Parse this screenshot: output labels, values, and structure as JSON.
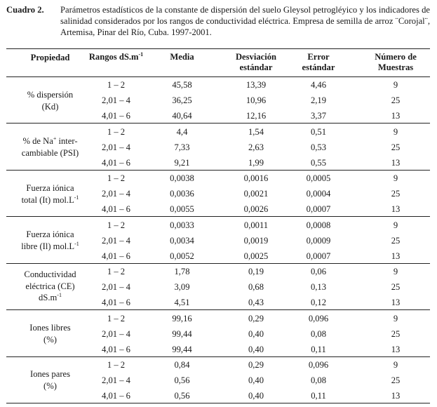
{
  "caption": {
    "label": "Cuadro 2.",
    "text": "Parámetros estadísticos de la constante de dispersión del suelo Gleysol petrogléyico y los indicadores de salinidad considerados por  los rangos de conductividad eléctrica. Empresa de semilla de arroz ¨Corojal¨, Artemisa, Pinar del Río, Cuba. 1997-2001."
  },
  "table": {
    "headers": {
      "propiedad": "Propiedad",
      "rangos": "Rangos dS.m",
      "rangos_sup": "-1",
      "media": "Media",
      "desviacion_1": "Desviación",
      "desviacion_2": "estándar",
      "error_1": "Error",
      "error_2": "estándar",
      "numero_1": "Número de",
      "numero_2": "Muestras"
    },
    "groups": [
      {
        "label_lines": [
          "% dispersión",
          "(Kd)"
        ],
        "rows": [
          {
            "rango": "1 – 2",
            "media": "45,58",
            "desviacion": "13,39",
            "error": "4,46",
            "n": "9"
          },
          {
            "rango": "2,01 – 4",
            "media": "36,25",
            "desviacion": "10,96",
            "error": "2,19",
            "n": "25"
          },
          {
            "rango": "4,01 – 6",
            "media": "40,64",
            "desviacion": "12,16",
            "error": "3,37",
            "n": "13"
          }
        ]
      },
      {
        "label_lines": [
          "% de Na",
          "+",
          " inter-",
          "cambiable (PSI)"
        ],
        "rows": [
          {
            "rango": "1 – 2",
            "media": "4,4",
            "desviacion": "1,54",
            "error": "0,51",
            "n": "9"
          },
          {
            "rango": "2,01 – 4",
            "media": "7,33",
            "desviacion": "2,63",
            "error": "0,53",
            "n": "25"
          },
          {
            "rango": "4,01 – 6",
            "media": "9,21",
            "desviacion": "1,99",
            "error": "0,55",
            "n": "13"
          }
        ]
      },
      {
        "label_lines": [
          "Fuerza iónica",
          "total (It) mol.L",
          "-1"
        ],
        "rows": [
          {
            "rango": "1 – 2",
            "media": "0,0038",
            "desviacion": "0,0016",
            "error": "0,0005",
            "n": "9"
          },
          {
            "rango": "2,01 – 4",
            "media": "0,0036",
            "desviacion": "0,0021",
            "error": "0,0004",
            "n": "25"
          },
          {
            "rango": "4,01 – 6",
            "media": "0,0055",
            "desviacion": "0,0026",
            "error": "0,0007",
            "n": "13"
          }
        ]
      },
      {
        "label_lines": [
          "Fuerza iónica",
          "libre (Il) mol.L",
          "-1"
        ],
        "rows": [
          {
            "rango": "1 – 2",
            "media": "0,0033",
            "desviacion": "0,0011",
            "error": "0,0008",
            "n": "9"
          },
          {
            "rango": "2,01 – 4",
            "media": "0,0034",
            "desviacion": "0,0019",
            "error": "0,0009",
            "n": "25"
          },
          {
            "rango": "4,01 – 6",
            "media": "0,0052",
            "desviacion": "0,0025",
            "error": "0,0007",
            "n": "13"
          }
        ]
      },
      {
        "label_lines": [
          "Conductividad",
          "eléctrica (CE)",
          "dS.m",
          "-1"
        ],
        "rows": [
          {
            "rango": "1 – 2",
            "media": "1,78",
            "desviacion": "0,19",
            "error": "0,06",
            "n": "9"
          },
          {
            "rango": "2,01 – 4",
            "media": "3,09",
            "desviacion": "0,68",
            "error": "0,13",
            "n": "25"
          },
          {
            "rango": "4,01 – 6",
            "media": "4,51",
            "desviacion": "0,43",
            "error": "0,12",
            "n": "13"
          }
        ]
      },
      {
        "label_lines": [
          "Iones libres",
          "(%)"
        ],
        "rows": [
          {
            "rango": "1 – 2",
            "media": "99,16",
            "desviacion": "0,29",
            "error": "0,096",
            "n": "9"
          },
          {
            "rango": "2,01 – 4",
            "media": "99,44",
            "desviacion": "0,40",
            "error": "0,08",
            "n": "25"
          },
          {
            "rango": "4,01 – 6",
            "media": "99,44",
            "desviacion": "0,40",
            "error": "0,11",
            "n": "13"
          }
        ]
      },
      {
        "label_lines": [
          "Iones pares",
          "(%)"
        ],
        "rows": [
          {
            "rango": "1 – 2",
            "media": "0,84",
            "desviacion": "0,29",
            "error": "0,096",
            "n": "9"
          },
          {
            "rango": "2,01 – 4",
            "media": "0,56",
            "desviacion": "0,40",
            "error": "0,08",
            "n": "25"
          },
          {
            "rango": "4,01 – 6",
            "media": "0,56",
            "desviacion": "0,40",
            "error": "0,11",
            "n": "13"
          }
        ]
      }
    ]
  }
}
